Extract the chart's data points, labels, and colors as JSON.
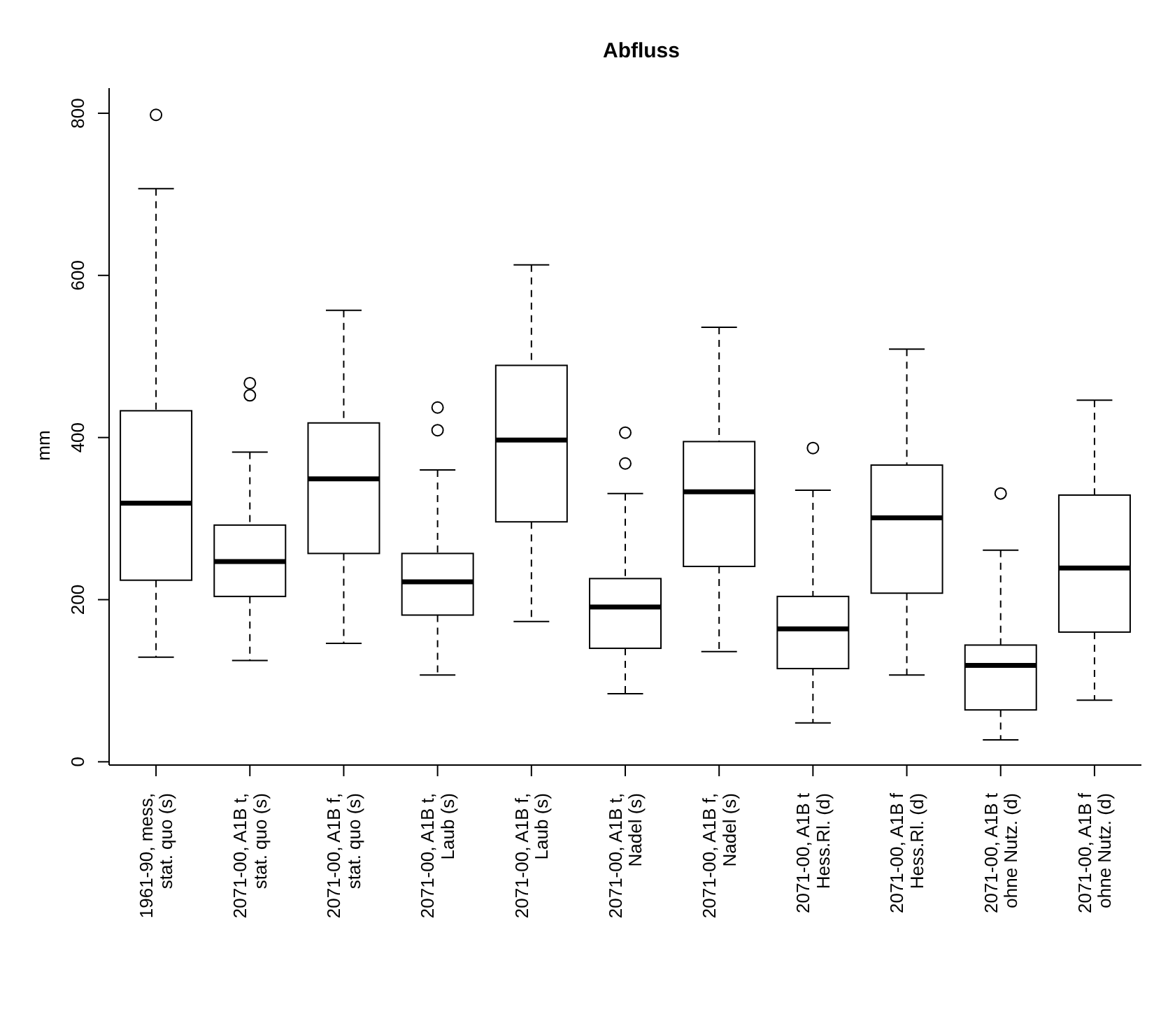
{
  "chart_data": {
    "type": "box",
    "title": "Abfluss",
    "ylabel": "mm",
    "categories": [
      "1961-90, mess,\nstat. quo (s)",
      "2071-00, A1B t,\nstat. quo (s)",
      "2071-00, A1B f,\nstat. quo (s)",
      "2071-00, A1B t,\nLaub (s)",
      "2071-00, A1B f,\nLaub (s)",
      "2071-00, A1B t,\nNadel (s)",
      "2071-00, A1B f,\nNadel (s)",
      "2071-00, A1B t\nHess.Rl. (d)",
      "2071-00, A1B f\nHess.Rl. (d)",
      "2071-00, A1B t\nohne Nutz. (d)",
      "2071-00, A1B f\nohne Nutz. (d)"
    ],
    "boxes": [
      {
        "low": 129,
        "q1": 224,
        "median": 319,
        "q3": 433,
        "high": 707,
        "outliers": [
          798
        ]
      },
      {
        "low": 125,
        "q1": 204,
        "median": 247,
        "q3": 292,
        "high": 382,
        "outliers": [
          452,
          467
        ]
      },
      {
        "low": 146,
        "q1": 257,
        "median": 349,
        "q3": 418,
        "high": 557
      },
      {
        "low": 107,
        "q1": 181,
        "median": 222,
        "q3": 257,
        "high": 360,
        "outliers": [
          409,
          437
        ]
      },
      {
        "low": 173,
        "q1": 296,
        "median": 397,
        "q3": 489,
        "high": 613
      },
      {
        "low": 84,
        "q1": 140,
        "median": 191,
        "q3": 226,
        "high": 331,
        "outliers": [
          368,
          406
        ]
      },
      {
        "low": 136,
        "q1": 241,
        "median": 333,
        "q3": 395,
        "high": 536
      },
      {
        "low": 48,
        "q1": 115,
        "median": 164,
        "q3": 204,
        "high": 335,
        "outliers": [
          387
        ]
      },
      {
        "low": 107,
        "q1": 208,
        "median": 301,
        "q3": 366,
        "high": 509
      },
      {
        "low": 27,
        "q1": 64,
        "median": 119,
        "q3": 144,
        "high": 261,
        "outliers": [
          331
        ]
      },
      {
        "low": 76,
        "q1": 160,
        "median": 239,
        "q3": 329,
        "high": 446
      }
    ],
    "color": "#000000",
    "ylim": [
      -4,
      831
    ],
    "yticks": [
      0,
      200,
      400,
      600,
      800
    ],
    "grid": false,
    "legend": false
  }
}
